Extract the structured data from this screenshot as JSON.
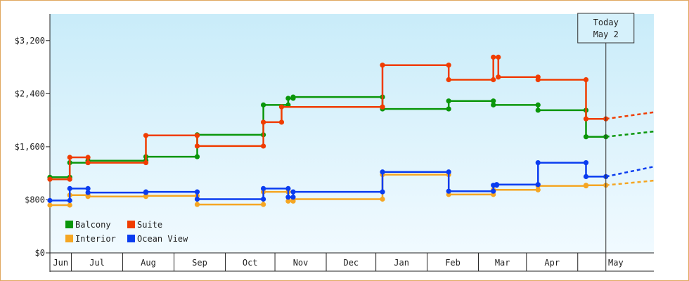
{
  "chart_data": {
    "type": "line",
    "title": "",
    "xlabel": "",
    "ylabel": "",
    "ylim": [
      0,
      3600
    ],
    "y_ticks": [
      0,
      800,
      1600,
      2400,
      3200
    ],
    "y_tick_labels": [
      "$0",
      "$800",
      "$1,600",
      "$2,400",
      "$3,200"
    ],
    "x_range": [
      "2015-06-01",
      "2016-05-31"
    ],
    "x_month_labels": [
      "Jun",
      "Jul",
      "Aug",
      "Sep",
      "Oct",
      "Nov",
      "Dec",
      "Jan",
      "Feb",
      "Mar",
      "Apr",
      "May"
    ],
    "x_month_starts": [
      "2015-06-01",
      "2015-06-14",
      "2015-07-15",
      "2015-08-15",
      "2015-09-15",
      "2015-10-15",
      "2015-11-15",
      "2015-12-15",
      "2016-01-15",
      "2016-02-15",
      "2016-03-15",
      "2016-04-15"
    ],
    "today_label_line1": "Today",
    "today_label_line2": "May 2",
    "today_date": "2016-05-02",
    "grid": false,
    "legend_position": "bottom-left",
    "series": [
      {
        "name": "Balcony",
        "color": "#0a960a",
        "line_type": "step",
        "points": [
          [
            "2015-06-01",
            1140
          ],
          [
            "2015-06-13",
            1140
          ],
          [
            "2015-06-13",
            1360
          ],
          [
            "2015-06-24",
            1360
          ],
          [
            "2015-06-24",
            1390
          ],
          [
            "2015-07-29",
            1390
          ],
          [
            "2015-07-29",
            1450
          ],
          [
            "2015-08-29",
            1450
          ],
          [
            "2015-08-29",
            1780
          ],
          [
            "2015-10-08",
            1780
          ],
          [
            "2015-10-08",
            2230
          ],
          [
            "2015-10-23",
            2230
          ],
          [
            "2015-10-23",
            2330
          ],
          [
            "2015-10-26",
            2330
          ],
          [
            "2015-10-26",
            2350
          ],
          [
            "2015-12-19",
            2350
          ],
          [
            "2015-12-19",
            2170
          ],
          [
            "2016-01-28",
            2170
          ],
          [
            "2016-01-28",
            2290
          ],
          [
            "2016-02-24",
            2290
          ],
          [
            "2016-02-24",
            2230
          ],
          [
            "2016-03-22",
            2230
          ],
          [
            "2016-03-22",
            2150
          ],
          [
            "2016-04-20",
            2150
          ],
          [
            "2016-04-20",
            1750
          ],
          [
            "2016-05-02",
            1750
          ]
        ],
        "projection": [
          [
            "2016-05-02",
            1750
          ],
          [
            "2016-05-31",
            1830
          ]
        ]
      },
      {
        "name": "Suite",
        "color": "#f03c00",
        "line_type": "step",
        "points": [
          [
            "2015-06-01",
            1110
          ],
          [
            "2015-06-13",
            1110
          ],
          [
            "2015-06-13",
            1440
          ],
          [
            "2015-06-24",
            1440
          ],
          [
            "2015-06-24",
            1360
          ],
          [
            "2015-07-29",
            1360
          ],
          [
            "2015-07-29",
            1770
          ],
          [
            "2015-08-29",
            1770
          ],
          [
            "2015-08-29",
            1610
          ],
          [
            "2015-10-08",
            1610
          ],
          [
            "2015-10-08",
            1970
          ],
          [
            "2015-10-19",
            1970
          ],
          [
            "2015-10-19",
            2200
          ],
          [
            "2015-12-19",
            2200
          ],
          [
            "2015-12-19",
            2830
          ],
          [
            "2016-01-28",
            2830
          ],
          [
            "2016-01-28",
            2610
          ],
          [
            "2016-02-24",
            2610
          ],
          [
            "2016-02-24",
            2950
          ],
          [
            "2016-02-27",
            2950
          ],
          [
            "2016-02-27",
            2650
          ],
          [
            "2016-03-22",
            2650
          ],
          [
            "2016-03-22",
            2610
          ],
          [
            "2016-04-20",
            2610
          ],
          [
            "2016-04-20",
            2020
          ],
          [
            "2016-05-02",
            2020
          ]
        ],
        "projection": [
          [
            "2016-05-02",
            2020
          ],
          [
            "2016-05-31",
            2120
          ]
        ]
      },
      {
        "name": "Interior",
        "color": "#f5a623",
        "line_type": "step",
        "points": [
          [
            "2015-06-01",
            720
          ],
          [
            "2015-06-13",
            720
          ],
          [
            "2015-06-13",
            870
          ],
          [
            "2015-06-24",
            870
          ],
          [
            "2015-06-24",
            850
          ],
          [
            "2015-07-29",
            850
          ],
          [
            "2015-07-29",
            860
          ],
          [
            "2015-08-29",
            860
          ],
          [
            "2015-08-29",
            730
          ],
          [
            "2015-10-08",
            730
          ],
          [
            "2015-10-08",
            920
          ],
          [
            "2015-10-23",
            920
          ],
          [
            "2015-10-23",
            780
          ],
          [
            "2015-10-26",
            780
          ],
          [
            "2015-10-26",
            810
          ],
          [
            "2015-12-19",
            810
          ],
          [
            "2015-12-19",
            1180
          ],
          [
            "2016-01-28",
            1180
          ],
          [
            "2016-01-28",
            880
          ],
          [
            "2016-02-24",
            880
          ],
          [
            "2016-02-24",
            950
          ],
          [
            "2016-03-22",
            950
          ],
          [
            "2016-03-22",
            1010
          ],
          [
            "2016-04-20",
            1010
          ],
          [
            "2016-04-20",
            1020
          ],
          [
            "2016-05-02",
            1020
          ]
        ],
        "projection": [
          [
            "2016-05-02",
            1020
          ],
          [
            "2016-05-31",
            1090
          ]
        ]
      },
      {
        "name": "Ocean View",
        "color": "#0a3cf0",
        "line_type": "step",
        "points": [
          [
            "2015-06-01",
            790
          ],
          [
            "2015-06-13",
            790
          ],
          [
            "2015-06-13",
            970
          ],
          [
            "2015-06-24",
            970
          ],
          [
            "2015-06-24",
            910
          ],
          [
            "2015-07-29",
            910
          ],
          [
            "2015-07-29",
            920
          ],
          [
            "2015-08-29",
            920
          ],
          [
            "2015-08-29",
            810
          ],
          [
            "2015-10-08",
            810
          ],
          [
            "2015-10-08",
            970
          ],
          [
            "2015-10-23",
            970
          ],
          [
            "2015-10-23",
            840
          ],
          [
            "2015-10-26",
            840
          ],
          [
            "2015-10-26",
            920
          ],
          [
            "2015-12-19",
            920
          ],
          [
            "2015-12-19",
            1220
          ],
          [
            "2016-01-28",
            1220
          ],
          [
            "2016-01-28",
            930
          ],
          [
            "2016-02-24",
            930
          ],
          [
            "2016-02-24",
            1020
          ],
          [
            "2016-02-26",
            1020
          ],
          [
            "2016-02-26",
            1030
          ],
          [
            "2016-03-22",
            1030
          ],
          [
            "2016-03-22",
            1360
          ],
          [
            "2016-04-20",
            1360
          ],
          [
            "2016-04-20",
            1150
          ],
          [
            "2016-05-02",
            1150
          ]
        ],
        "projection": [
          [
            "2016-05-02",
            1150
          ],
          [
            "2016-05-31",
            1300
          ]
        ]
      }
    ]
  }
}
